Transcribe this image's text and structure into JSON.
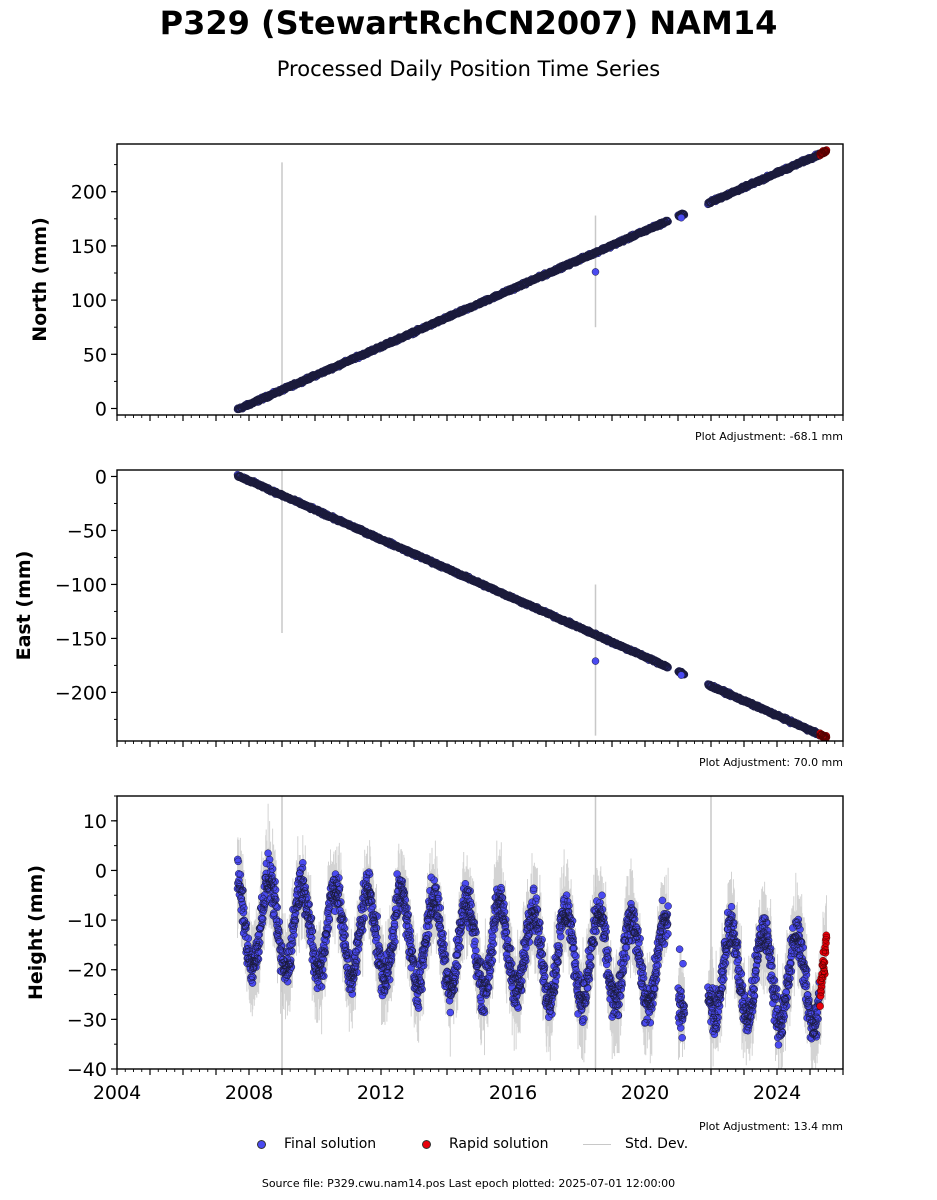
{
  "title": "P329 (StewartRchCN2007) NAM14",
  "subtitle": "Processed Daily Position Time Series",
  "footer": "Source file: P329.cwu.nam14.pos  Last epoch plotted: 2025-07-01 12:00:00",
  "legend": {
    "final": "Final solution",
    "rapid": "Rapid solution",
    "std": "Std. Dev."
  },
  "colors": {
    "final": "#4a4af0",
    "rapid": "#e8000b",
    "std": "#c8c8c8",
    "edge": "#1a1a3a"
  },
  "chart_data": [
    {
      "type": "scatter",
      "ylabel": "North (mm)",
      "adjustment": "Plot Adjustment: -68.1 mm",
      "xlim": [
        2004,
        2026
      ],
      "ylim": [
        -6,
        244
      ],
      "yticks": [
        0,
        50,
        100,
        150,
        200
      ],
      "start": 2007.65,
      "end": 2025.5,
      "start_value": -1,
      "rate": 13.35,
      "gaps": [
        [
          2020.7,
          2021.0
        ],
        [
          2021.2,
          2021.9
        ]
      ],
      "spikes": [
        {
          "x": 2009.0,
          "low": 15,
          "high": 227
        },
        {
          "x": 2018.5,
          "low": 75,
          "high": 178
        }
      ],
      "outliers": [
        {
          "x": 2018.5,
          "y": 126
        },
        {
          "x": 2021.1,
          "y": 176
        }
      ],
      "rapid_from": 2025.3
    },
    {
      "type": "scatter",
      "ylabel": "East (mm)",
      "adjustment": "Plot Adjustment: 70.0 mm",
      "xlim": [
        2004,
        2026
      ],
      "ylim": [
        -245,
        6
      ],
      "yticks": [
        0,
        -50,
        -100,
        -150,
        -200
      ],
      "start": 2007.65,
      "end": 2025.5,
      "start_value": 1,
      "rate": -13.6,
      "gaps": [
        [
          2020.7,
          2021.0
        ],
        [
          2021.2,
          2021.9
        ]
      ],
      "spikes": [
        {
          "x": 2009.0,
          "low": -145,
          "high": 6
        },
        {
          "x": 2018.5,
          "low": -240,
          "high": -100
        }
      ],
      "outliers": [
        {
          "x": 2018.5,
          "y": -171
        },
        {
          "x": 2021.1,
          "y": -184
        }
      ],
      "rapid_from": 2025.3
    },
    {
      "type": "scatter",
      "ylabel": "Height (mm)",
      "adjustment": "Plot Adjustment: 13.4 mm",
      "xlim": [
        2004,
        2026
      ],
      "ylim": [
        -40,
        15
      ],
      "yticks": [
        10,
        0,
        -10,
        -20,
        -30,
        -40
      ],
      "xticks": [
        2004,
        2008,
        2012,
        2016,
        2020,
        2024
      ],
      "start": 2007.65,
      "end": 2025.5,
      "base": -10,
      "trend": -0.7,
      "amplitude": 9,
      "gaps": [
        [
          2020.7,
          2021.0
        ],
        [
          2021.2,
          2021.9
        ]
      ],
      "spikes": [
        {
          "x": 2009.0,
          "low": -40,
          "high": 15
        },
        {
          "x": 2018.5,
          "low": -40,
          "high": 15
        },
        {
          "x": 2022.0,
          "low": -40,
          "high": 15
        }
      ],
      "rapid_from": 2025.3
    }
  ]
}
